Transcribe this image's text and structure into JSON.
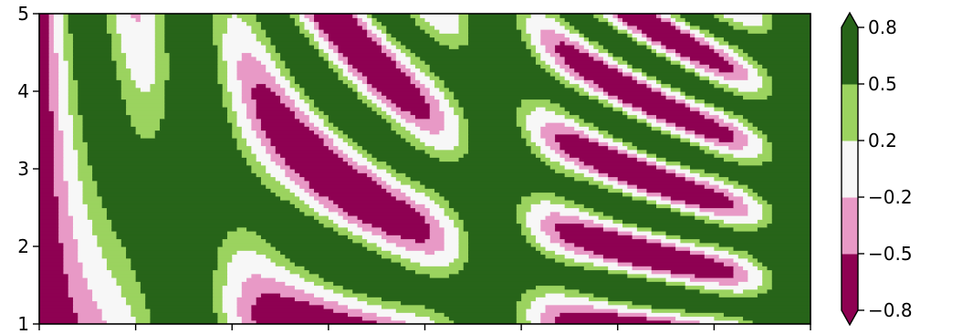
{
  "chart_data": {
    "type": "heatmap",
    "title": "",
    "xlabel": "",
    "ylabel": "",
    "xlim": [
      0,
      8
    ],
    "ylim": [
      1,
      5
    ],
    "xticks": [
      0,
      1,
      2,
      3,
      4,
      5,
      6,
      7,
      8
    ],
    "xtick_labels_visible": false,
    "yticks": [
      1,
      2,
      3,
      4,
      5
    ],
    "ytick_labels": [
      "1",
      "2",
      "3",
      "4",
      "5"
    ],
    "grid": false,
    "field": "sin(x)^10 + cos(10 + y*x) * cos(x)",
    "grid_resolution": 0.05,
    "levels": [
      -0.8,
      -0.5,
      -0.2,
      0.2,
      0.5,
      0.8
    ],
    "level_colors": [
      "#8e0152",
      "#e899c6",
      "#f7f7f7",
      "#9bd35f",
      "#276419"
    ],
    "extend": "both",
    "under_color": "#8e0152",
    "over_color": "#276419",
    "colormap": "PiYG",
    "colorbar": {
      "position": "right",
      "tick_labels": [
        "−0.8",
        "−0.5",
        "−0.2",
        "0.2",
        "0.5",
        "0.8"
      ]
    }
  }
}
